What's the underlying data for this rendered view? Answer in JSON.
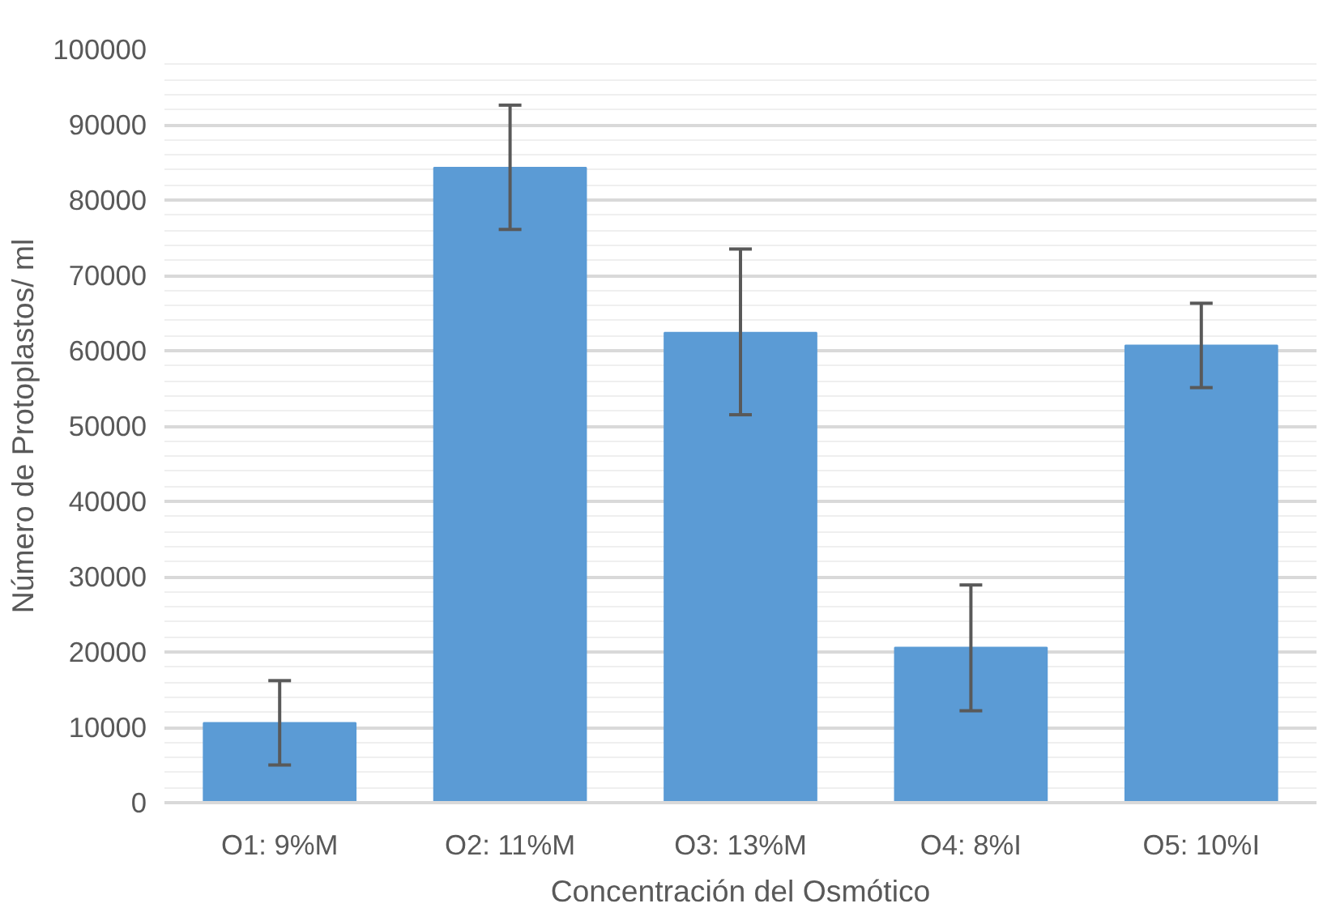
{
  "chart_data": {
    "type": "bar",
    "xlabel": "Concentración del Osmótico",
    "ylabel": "Número de Protoplastos/ ml",
    "categories": [
      "O1: 9%M",
      "O2: 11%M",
      "O3: 13%M",
      "O4: 8%I",
      "O5: 10%I"
    ],
    "values": [
      10600,
      84300,
      62400,
      20600,
      60700
    ],
    "errors": [
      [
        5000,
        16200
      ],
      [
        76100,
        92600
      ],
      [
        51500,
        73500
      ],
      [
        12200,
        28900
      ],
      [
        55100,
        66300
      ]
    ],
    "color": "#5b9bd5",
    "ylim": [
      0,
      100000
    ],
    "yticks": [
      0,
      10000,
      20000,
      30000,
      40000,
      50000,
      60000,
      70000,
      80000,
      90000,
      100000
    ],
    "grid": "y"
  }
}
